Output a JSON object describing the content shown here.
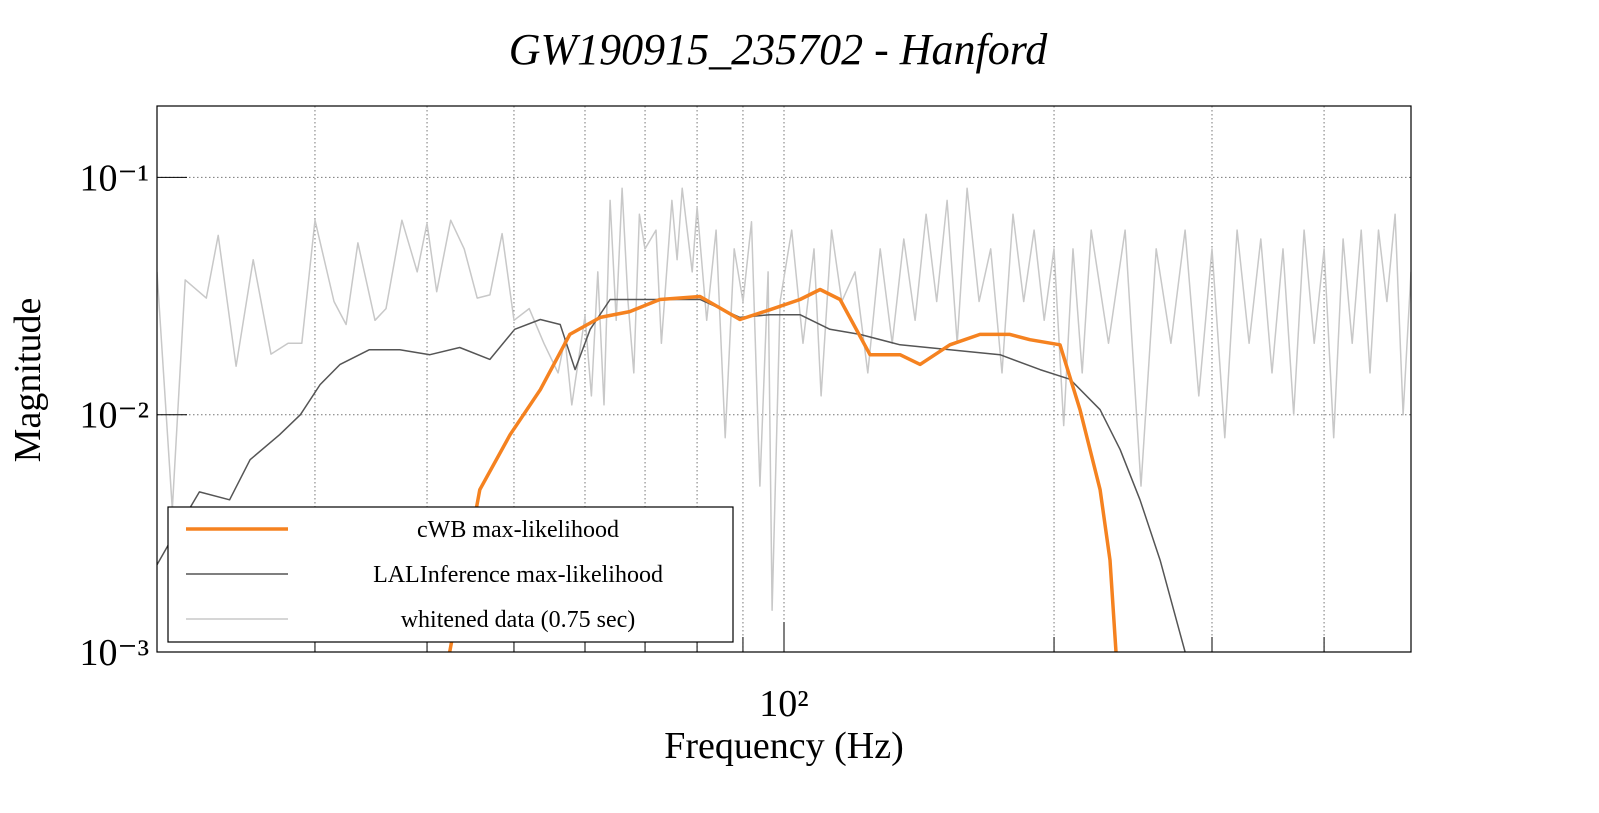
{
  "chart_data": {
    "type": "line",
    "title": "GW190915_235702 - Hanford",
    "x_label": "Frequency (Hz)",
    "y_label": "Magnitude",
    "xscale": "log",
    "yscale": "log",
    "grid": true,
    "legend_position": "lower left",
    "xlim": [
      20,
      500
    ],
    "ylim": [
      0.001,
      0.2
    ],
    "xticks": [
      {
        "value": 100,
        "label": "10²"
      }
    ],
    "xminor": [
      30,
      40,
      50,
      60,
      70,
      80,
      90,
      200,
      300,
      400
    ],
    "yticks": [
      {
        "value": 0.001,
        "label": "10⁻³"
      },
      {
        "value": 0.01,
        "label": "10⁻²"
      },
      {
        "value": 0.1,
        "label": "10⁻¹"
      }
    ],
    "series": [
      {
        "name": "cWB max-likelihood",
        "color": "#f58220",
        "width": 3.5,
        "x": [
          42.4,
          45.8,
          49.5,
          53.5,
          57.7,
          62.4,
          67.3,
          72.7,
          80.6,
          89.3,
          96.5,
          104.2,
          109.7,
          115.5,
          124.7,
          134.7,
          141.8,
          153.1,
          165.4,
          178.6,
          188.0,
          203.1,
          213.8,
          225.1,
          230.9,
          234.5
        ],
        "values": [
          0.001,
          0.00483,
          0.00824,
          0.01275,
          0.0218,
          0.0257,
          0.0272,
          0.0306,
          0.0315,
          0.0252,
          0.0277,
          0.0306,
          0.0337,
          0.0306,
          0.0179,
          0.0179,
          0.0163,
          0.0197,
          0.0218,
          0.0218,
          0.0207,
          0.0197,
          0.0105,
          0.00483,
          0.00244,
          0.001
        ]
      },
      {
        "name": "LALInference max-likelihood",
        "color": "#555555",
        "width": 1.5,
        "x": [
          20.0,
          20.9,
          22.3,
          24.1,
          25.4,
          27.4,
          28.9,
          30.4,
          32.0,
          34.5,
          37.3,
          40.3,
          43.5,
          47.0,
          50.1,
          53.5,
          56.3,
          58.5,
          60.8,
          64.0,
          69.1,
          74.6,
          80.6,
          89.3,
          96.5,
          104.2,
          112.5,
          121.5,
          134.7,
          153.1,
          174.1,
          192.9,
          208.4,
          225.1,
          237.0,
          249.4,
          262.6,
          280.0
        ],
        "values": [
          0.00233,
          0.00312,
          0.00473,
          0.00438,
          0.00646,
          0.00824,
          0.01,
          0.0134,
          0.0163,
          0.0188,
          0.0188,
          0.0179,
          0.0192,
          0.0171,
          0.0229,
          0.0252,
          0.024,
          0.0155,
          0.0229,
          0.0306,
          0.0306,
          0.0306,
          0.0306,
          0.0257,
          0.0264,
          0.0264,
          0.0229,
          0.0218,
          0.0197,
          0.0188,
          0.0179,
          0.0155,
          0.0141,
          0.0105,
          0.00712,
          0.00438,
          0.00244,
          0.001
        ]
      },
      {
        "name": "whitened data (0.75 sec)",
        "color": "#c8c8c8",
        "width": 1.5,
        "x": [
          20,
          20.8,
          21.5,
          22.7,
          23.4,
          24.5,
          25.6,
          26.8,
          28,
          29,
          30,
          31.5,
          32.5,
          33.5,
          35,
          36,
          37.5,
          39,
          40,
          41,
          42.5,
          44,
          45.5,
          47,
          48.5,
          50,
          52,
          54,
          56,
          57,
          58,
          60,
          61,
          62,
          63,
          64,
          65,
          66,
          67,
          68,
          69,
          70,
          72,
          73,
          75,
          76,
          77,
          79,
          80,
          82,
          84,
          86,
          88,
          90,
          92,
          94,
          96,
          97,
          99,
          102,
          105,
          108,
          110,
          113,
          116,
          120,
          124,
          128,
          132,
          136,
          140,
          144,
          148,
          152,
          156,
          160,
          165,
          170,
          175,
          180,
          185,
          190,
          195,
          200,
          205,
          210,
          215,
          220,
          230,
          240,
          250,
          260,
          270,
          280,
          290,
          300,
          310,
          320,
          330,
          340,
          350,
          360,
          370,
          380,
          390,
          400,
          410,
          420,
          430,
          440,
          450,
          460,
          470,
          480,
          490,
          500
        ],
        "values": [
          0.04,
          0.004,
          0.037,
          0.031,
          0.057,
          0.016,
          0.045,
          0.018,
          0.02,
          0.02,
          0.066,
          0.03,
          0.024,
          0.053,
          0.025,
          0.028,
          0.066,
          0.04,
          0.064,
          0.033,
          0.066,
          0.05,
          0.031,
          0.032,
          0.058,
          0.025,
          0.028,
          0.02,
          0.015,
          0.021,
          0.011,
          0.026,
          0.012,
          0.04,
          0.011,
          0.08,
          0.025,
          0.09,
          0.03,
          0.015,
          0.07,
          0.05,
          0.06,
          0.02,
          0.08,
          0.045,
          0.09,
          0.04,
          0.075,
          0.025,
          0.06,
          0.008,
          0.05,
          0.03,
          0.065,
          0.005,
          0.04,
          0.0015,
          0.03,
          0.06,
          0.02,
          0.05,
          0.012,
          0.06,
          0.03,
          0.04,
          0.015,
          0.05,
          0.02,
          0.055,
          0.025,
          0.07,
          0.03,
          0.08,
          0.02,
          0.09,
          0.03,
          0.05,
          0.015,
          0.07,
          0.03,
          0.06,
          0.025,
          0.05,
          0.009,
          0.05,
          0.015,
          0.06,
          0.02,
          0.06,
          0.005,
          0.05,
          0.02,
          0.06,
          0.012,
          0.05,
          0.008,
          0.06,
          0.02,
          0.055,
          0.015,
          0.05,
          0.01,
          0.06,
          0.02,
          0.05,
          0.008,
          0.055,
          0.02,
          0.06,
          0.015,
          0.06,
          0.03,
          0.07,
          0.01,
          0.04
        ]
      }
    ]
  }
}
